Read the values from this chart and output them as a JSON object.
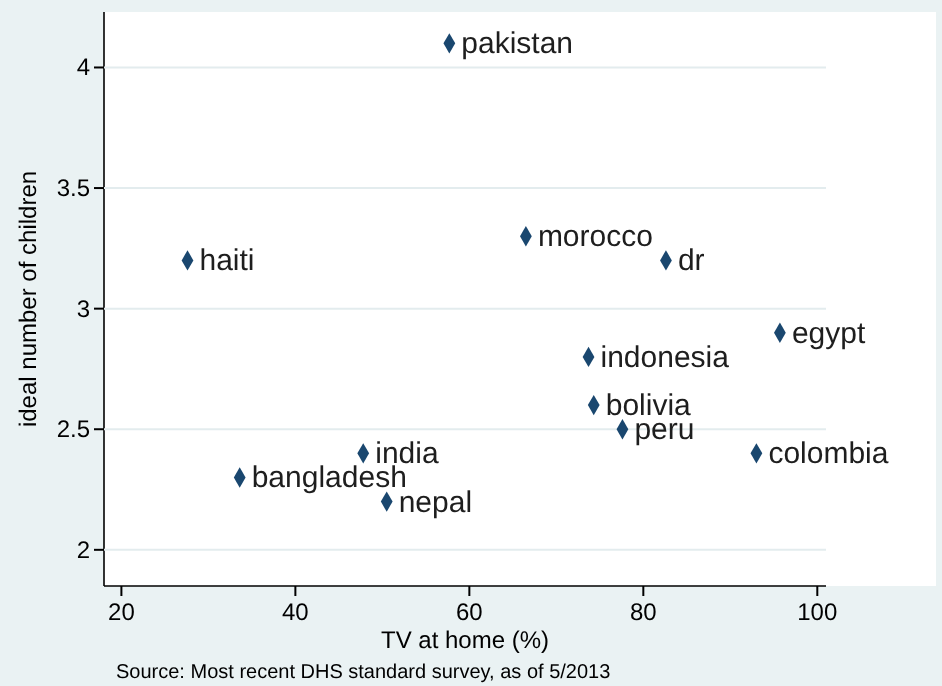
{
  "chart_data": {
    "type": "scatter",
    "xlabel": "TV at home (%)",
    "ylabel": "ideal number of children",
    "xlim": [
      18,
      101
    ],
    "ylim": [
      1.85,
      4.23
    ],
    "xticks": [
      20,
      40,
      60,
      80,
      100
    ],
    "yticks": [
      2,
      2.5,
      3,
      3.5,
      4
    ],
    "grid": "y",
    "marker": "diamond",
    "annotations": [
      "Source: Most recent DHS standard survey, as of 5/2013"
    ],
    "series": [
      {
        "name": "pakistan",
        "color": "#1a476f",
        "x": [
          57.7
        ],
        "values": [
          4.1
        ]
      },
      {
        "name": "haiti",
        "color": "#1a476f",
        "x": [
          27.6
        ],
        "values": [
          3.2
        ]
      },
      {
        "name": "morocco",
        "color": "#1a476f",
        "x": [
          66.5
        ],
        "values": [
          3.3
        ]
      },
      {
        "name": "dr",
        "color": "#1a476f",
        "x": [
          82.6
        ],
        "values": [
          3.2
        ]
      },
      {
        "name": "egypt",
        "color": "#1a476f",
        "x": [
          95.7
        ],
        "values": [
          2.9
        ]
      },
      {
        "name": "indonesia",
        "color": "#1a476f",
        "x": [
          73.7
        ],
        "values": [
          2.8
        ]
      },
      {
        "name": "bolivia",
        "color": "#1a476f",
        "x": [
          74.3
        ],
        "values": [
          2.6
        ]
      },
      {
        "name": "peru",
        "color": "#1a476f",
        "x": [
          77.6
        ],
        "values": [
          2.5
        ]
      },
      {
        "name": "colombia",
        "color": "#1a476f",
        "x": [
          93
        ],
        "values": [
          2.4
        ]
      },
      {
        "name": "india",
        "color": "#1a476f",
        "x": [
          47.8
        ],
        "values": [
          2.4
        ]
      },
      {
        "name": "bangladesh",
        "color": "#1a476f",
        "x": [
          33.6
        ],
        "values": [
          2.3
        ]
      },
      {
        "name": "nepal",
        "color": "#1a476f",
        "x": [
          50.5
        ],
        "values": [
          2.2
        ]
      }
    ]
  }
}
